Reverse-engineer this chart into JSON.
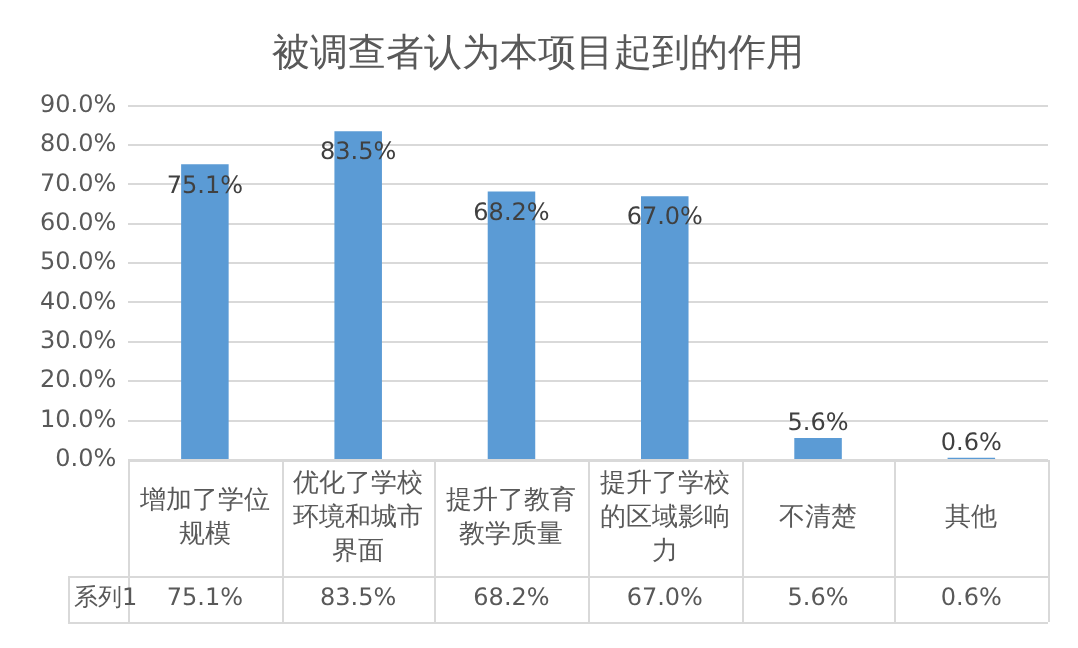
{
  "chart_data": {
    "type": "bar",
    "title": "被调查者认为本项目起到的作用",
    "categories": [
      "增加了学位规模",
      "优化了学校环境和城市界面",
      "提升了教育教学质量",
      "提升了学校的区域影响力",
      "不清楚",
      "其他"
    ],
    "series": [
      {
        "name": "系列1",
        "color": "#5b9bd5",
        "values": [
          75.1,
          83.5,
          68.2,
          67.0,
          5.6,
          0.6
        ],
        "value_labels": [
          "75.1%",
          "83.5%",
          "68.2%",
          "67.0%",
          "5.6%",
          "0.6%"
        ]
      }
    ],
    "ylim": [
      0,
      90
    ],
    "yticks": [
      {
        "value": 0,
        "label": "0.0%"
      },
      {
        "value": 10,
        "label": "10.0%"
      },
      {
        "value": 20,
        "label": "20.0%"
      },
      {
        "value": 30,
        "label": "30.0%"
      },
      {
        "value": 40,
        "label": "40.0%"
      },
      {
        "value": 50,
        "label": "50.0%"
      },
      {
        "value": 60,
        "label": "60.0%"
      },
      {
        "value": 70,
        "label": "70.0%"
      },
      {
        "value": 80,
        "label": "80.0%"
      },
      {
        "value": 90,
        "label": "90.0%"
      }
    ],
    "grid": "y",
    "legend": false
  }
}
